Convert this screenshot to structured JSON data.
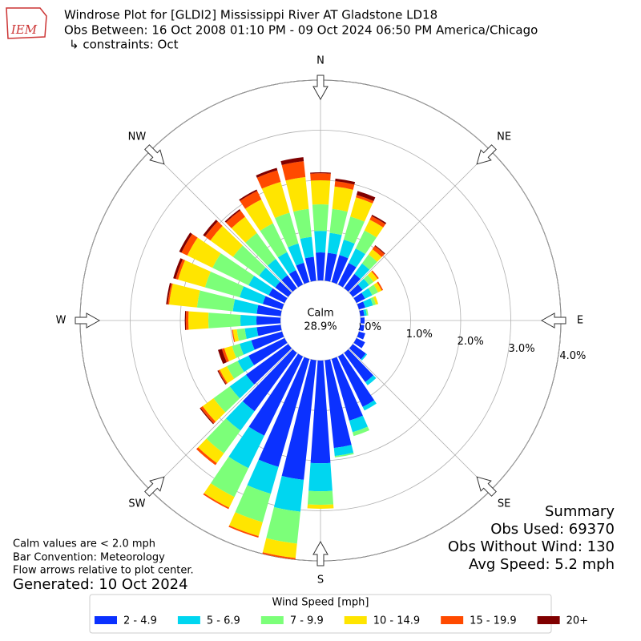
{
  "logo_text": "IEM",
  "chart_data": {
    "type": "windrose",
    "title": "Windrose Plot for [GLDI2] Mississippi River  AT Gladstone LD18",
    "subtitle": "Obs Between: 16 Oct 2008 01:10 PM - 09 Oct 2024 06:50 PM America/Chicago",
    "constraints": "↳ constraints: Oct",
    "compass_labels": [
      "N",
      "NE",
      "E",
      "SE",
      "S",
      "SW",
      "W",
      "NW"
    ],
    "calm_label": "Calm",
    "calm_value": "28.9%",
    "rlim": [
      0,
      4.0
    ],
    "rticks": [
      {
        "value": 0,
        "label": "0.0%"
      },
      {
        "value": 1,
        "label": "1.0%"
      },
      {
        "value": 2,
        "label": "2.0%"
      },
      {
        "value": 3,
        "label": "3.0%"
      },
      {
        "value": 4,
        "label": "4.0%"
      }
    ],
    "grid": true,
    "legend_title": "Wind Speed [mph]",
    "series": [
      {
        "name": "2 - 4.9",
        "color": "#0b31ff",
        "values": [
          0.56,
          0.56,
          0.56,
          0.48,
          0.35,
          0.24,
          0.19,
          0.13,
          0.08,
          0.08,
          0.08,
          0.13,
          0.19,
          0.32,
          0.72,
          1.12,
          1.28,
          1.76,
          2.05,
          2.4,
          2.24,
          1.76,
          1.44,
          1.04,
          0.8,
          0.64,
          0.48,
          0.48,
          0.48,
          0.4,
          0.35,
          0.32,
          0.32,
          0.32,
          0.4,
          0.48
        ]
      },
      {
        "name": "5 - 6.9",
        "color": "#00d6f0",
        "values": [
          0.43,
          0.4,
          0.32,
          0.32,
          0.26,
          0.16,
          0.16,
          0.16,
          0.05,
          0,
          0,
          0,
          0,
          0.03,
          0.08,
          0.08,
          0.24,
          0.16,
          0.56,
          0.64,
          0.56,
          0.72,
          0.48,
          0.4,
          0.24,
          0.24,
          0.24,
          0.32,
          0.48,
          0.48,
          0.45,
          0.4,
          0.4,
          0.4,
          0.4,
          0.4
        ]
      },
      {
        "name": "7 - 9.9",
        "color": "#7cff79",
        "values": [
          0.53,
          0.48,
          0.48,
          0.4,
          0.22,
          0.11,
          0.13,
          0.06,
          0.03,
          0,
          0,
          0,
          0,
          0,
          0,
          0,
          0.08,
          0.03,
          0.27,
          0.64,
          0.59,
          0.64,
          0.56,
          0.4,
          0.24,
          0.16,
          0.16,
          0.64,
          0.72,
          0.72,
          0.8,
          0.64,
          0.64,
          0.64,
          0.64,
          0.56
        ]
      },
      {
        "name": "10 - 14.9",
        "color": "#ffe500",
        "values": [
          0.48,
          0.45,
          0.4,
          0.24,
          0.13,
          0.1,
          0.08,
          0.05,
          0,
          0,
          0,
          0,
          0,
          0,
          0,
          0,
          0,
          0,
          0.08,
          0.29,
          0.29,
          0.24,
          0.24,
          0.27,
          0.16,
          0.16,
          0.08,
          0.4,
          0.56,
          0.56,
          0.56,
          0.56,
          0.4,
          0.53,
          0.64,
          0.64
        ]
      },
      {
        "name": "15 - 19.9",
        "color": "#ff4a00",
        "values": [
          0.14,
          0.11,
          0.05,
          0.08,
          0.08,
          0.03,
          0.03,
          0,
          0,
          0,
          0,
          0,
          0,
          0,
          0,
          0,
          0,
          0,
          0,
          0.03,
          0.03,
          0.03,
          0.05,
          0.05,
          0.03,
          0.05,
          0.02,
          0.05,
          0.03,
          0.05,
          0.13,
          0.13,
          0.16,
          0.19,
          0.24,
          0.32
        ]
      },
      {
        "name": "20+",
        "color": "#800000",
        "values": [
          0.02,
          0.05,
          0.08,
          0.03,
          0.02,
          0,
          0,
          0,
          0,
          0,
          0,
          0,
          0,
          0,
          0,
          0,
          0,
          0,
          0,
          0,
          0,
          0,
          0,
          0.02,
          0.02,
          0.08,
          0,
          0.02,
          0.03,
          0.05,
          0.05,
          0.05,
          0.03,
          0.03,
          0.05,
          0.08
        ]
      }
    ]
  },
  "summary": [
    "Summary",
    "Obs Used: 69370",
    "Obs Without Wind: 130",
    "Avg Speed: 5.2 mph"
  ],
  "notes": [
    "Calm values are < 2.0 mph",
    "Bar Convention: Meteorology",
    "Flow arrows relative to plot center."
  ],
  "generated": "Generated: 10 Oct 2024"
}
